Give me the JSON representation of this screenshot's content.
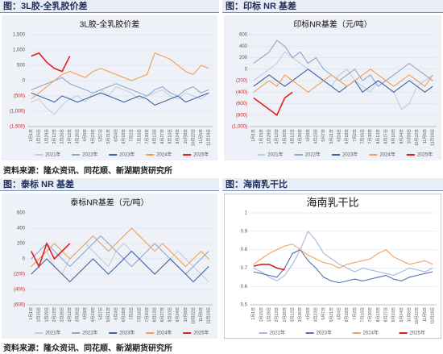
{
  "captions": [
    "图：3L胶-全乳胶价差",
    "图：印标 NR 基差",
    "图：泰标 NR 基差",
    "图：海南乳干比"
  ],
  "sources": [
    "资料来源：隆众资讯、同花顺、新湖期货研究所",
    "资料来源：隆众资讯、同花顺、新湖期货研究所"
  ],
  "chart_data": [
    {
      "type": "line",
      "title": "3L胶-全乳胶价差",
      "categories": [
        "1月1日",
        "1月15日",
        "1月29日",
        "2月12日",
        "2月26日",
        "3月12日",
        "3月26日",
        "4月9日",
        "4月23日",
        "5月7日",
        "5月21日",
        "6月4日",
        "6月18日",
        "7月2日",
        "7月16日",
        "7月30日",
        "8月13日",
        "8月27日",
        "9月10日",
        "9月24日",
        "10月8日",
        "10月22日",
        "11月5日",
        "11月19日"
      ],
      "ylim": [
        -1500,
        1500
      ],
      "yticks": [
        {
          "value": 1500,
          "label": "1,500"
        },
        {
          "value": 1000,
          "label": "1,000"
        },
        500,
        0,
        {
          "value": -500,
          "label": "(500)"
        },
        {
          "value": -1000,
          "label": "(1,000)"
        },
        {
          "value": -1500,
          "label": "(1,500)"
        }
      ],
      "series": [
        {
          "name": "2021年",
          "color": "#c3cde0",
          "values": [
            -700,
            -600,
            -900,
            -1100,
            -800,
            -600,
            -500,
            -700,
            -400,
            -300,
            -500,
            -200,
            -300,
            -400,
            -600,
            -500,
            -400,
            -300,
            -500,
            -600,
            -400,
            -500,
            -600,
            -400
          ]
        },
        {
          "name": "2022年",
          "color": "#8ea6cf",
          "values": [
            -300,
            -200,
            -100,
            0,
            100,
            -100,
            -200,
            -300,
            -400,
            -300,
            -200,
            -100,
            -200,
            -300,
            -400,
            -500,
            -300,
            -200,
            -400,
            -500,
            -300,
            -200,
            -400,
            -300
          ]
        },
        {
          "name": "2023年",
          "color": "#3c64a8",
          "values": [
            -400,
            -500,
            -600,
            -700,
            -500,
            -600,
            -700,
            -600,
            -500,
            -400,
            -500,
            -600,
            -700,
            -600,
            -500,
            -600,
            -800,
            -700,
            -600,
            -500,
            -700,
            -600,
            -500,
            -400
          ]
        },
        {
          "name": "2024年",
          "color": "#f0a050",
          "values": [
            -600,
            -400,
            -200,
            0,
            200,
            300,
            200,
            100,
            300,
            400,
            300,
            200,
            100,
            0,
            100,
            200,
            900,
            800,
            700,
            500,
            300,
            200,
            500,
            400
          ]
        },
        {
          "name": "2025年",
          "color": "#e02020",
          "values": [
            800,
            900,
            600,
            400,
            300,
            800,
            null,
            null,
            null,
            null,
            null,
            null,
            null,
            null,
            null,
            null,
            null,
            null,
            null,
            null,
            null,
            null,
            null,
            null
          ]
        }
      ]
    },
    {
      "type": "line",
      "title": "印标NR基差（元/吨）",
      "categories": [
        "1月1日",
        "1月15日",
        "1月29日",
        "2月12日",
        "2月26日",
        "3月12日",
        "3月26日",
        "4月9日",
        "4月23日",
        "5月7日",
        "5月21日",
        "6月4日",
        "6月18日",
        "7月2日",
        "7月16日",
        "7月30日",
        "8月13日",
        "8月27日",
        "9月10日",
        "9月24日",
        "10月8日",
        "10月22日",
        "11月5日",
        "11月19日"
      ],
      "ylim": [
        -1000,
        600
      ],
      "yticks": [
        600,
        400,
        200,
        0,
        {
          "value": -200,
          "label": "(200)"
        },
        {
          "value": -400,
          "label": "(400)"
        },
        {
          "value": -600,
          "label": "(600)"
        },
        {
          "value": -800,
          "label": "(800)"
        },
        {
          "value": -1000,
          "label": "(1,000)"
        }
      ],
      "series": [
        {
          "name": "2021年",
          "color": "#c3cde0",
          "values": [
            -200,
            -100,
            0,
            100,
            300,
            200,
            100,
            0,
            -100,
            -200,
            -300,
            -100,
            0,
            -200,
            -300,
            -400,
            -200,
            -300,
            -400,
            -700,
            -600,
            -300,
            -200,
            -100
          ]
        },
        {
          "name": "2022年",
          "color": "#8ea6cf",
          "values": [
            100,
            200,
            300,
            500,
            400,
            200,
            300,
            100,
            200,
            0,
            -100,
            -200,
            -100,
            0,
            -200,
            -100,
            -300,
            -200,
            -100,
            0,
            100,
            0,
            -100,
            -200
          ]
        },
        {
          "name": "2023年",
          "color": "#3c64a8",
          "values": [
            -300,
            -200,
            -100,
            -200,
            -300,
            -200,
            -100,
            0,
            -100,
            -200,
            -300,
            -400,
            -300,
            -200,
            -400,
            -300,
            -200,
            -300,
            -400,
            -300,
            -200,
            -300,
            -400,
            -300
          ]
        },
        {
          "name": "2024年",
          "color": "#f0a050",
          "values": [
            -400,
            -300,
            -200,
            -300,
            -100,
            -200,
            -300,
            -400,
            -300,
            -200,
            -100,
            -200,
            -300,
            -200,
            -100,
            0,
            -100,
            -200,
            -300,
            -200,
            -100,
            -200,
            -300,
            -100
          ]
        },
        {
          "name": "2025年",
          "color": "#e02020",
          "values": [
            -500,
            -600,
            -700,
            -800,
            -500,
            -400,
            null,
            null,
            null,
            null,
            null,
            null,
            null,
            null,
            null,
            null,
            null,
            null,
            null,
            null,
            null,
            null,
            null,
            null
          ]
        }
      ]
    },
    {
      "type": "line",
      "title": "泰标NR基差（元/吨）",
      "categories": [
        "1月1日",
        "1月15日",
        "1月29日",
        "2月12日",
        "2月26日",
        "3月12日",
        "3月26日",
        "4月9日",
        "4月23日",
        "5月7日",
        "5月21日",
        "6月4日",
        "6月18日",
        "7月2日",
        "7月16日",
        "7月30日",
        "8月13日",
        "8月27日",
        "9月10日",
        "9月24日",
        "10月8日",
        "10月22日",
        "11月5日",
        "11月19日"
      ],
      "ylim": [
        -600,
        600
      ],
      "yticks": [
        600,
        400,
        200,
        0,
        {
          "value": -200,
          "label": "(200)"
        },
        {
          "value": -400,
          "label": "(400)"
        },
        {
          "value": -600,
          "label": "(600)"
        }
      ],
      "series": [
        {
          "name": "2021年",
          "color": "#c3cde0",
          "values": [
            -100,
            0,
            100,
            -100,
            -200,
            0,
            100,
            200,
            100,
            0,
            -100,
            100,
            200,
            100,
            0,
            -100,
            -200,
            -100,
            0,
            100,
            0,
            -100,
            -200,
            -300
          ]
        },
        {
          "name": "2022年",
          "color": "#8ea6cf",
          "values": [
            0,
            100,
            200,
            100,
            0,
            -100,
            0,
            100,
            200,
            300,
            200,
            100,
            0,
            -100,
            0,
            100,
            200,
            100,
            0,
            -100,
            -200,
            -100,
            0,
            100
          ]
        },
        {
          "name": "2023年",
          "color": "#3c64a8",
          "values": [
            -200,
            -100,
            0,
            -100,
            -200,
            -300,
            -200,
            -100,
            0,
            -100,
            -200,
            -100,
            0,
            100,
            0,
            -100,
            -200,
            -100,
            0,
            -100,
            -200,
            -300,
            -200,
            -100
          ]
        },
        {
          "name": "2024年",
          "color": "#f0a050",
          "values": [
            -100,
            0,
            100,
            200,
            100,
            0,
            100,
            200,
            300,
            200,
            100,
            200,
            300,
            400,
            300,
            200,
            100,
            200,
            100,
            0,
            -100,
            0,
            100,
            0
          ]
        },
        {
          "name": "2025年",
          "color": "#e02020",
          "values": [
            100,
            -100,
            200,
            0,
            100,
            200,
            null,
            null,
            null,
            null,
            null,
            null,
            null,
            null,
            null,
            null,
            null,
            null,
            null,
            null,
            null,
            null,
            null,
            null
          ]
        }
      ]
    },
    {
      "type": "line",
      "title": "海南乳干比",
      "categories": [
        "1月1日",
        "1月15日",
        "1月29日",
        "2月12日",
        "2月26日",
        "3月12日",
        "3月26日",
        "4月9日",
        "4月23日",
        "5月7日",
        "5月21日",
        "6月4日",
        "6月18日",
        "7月2日",
        "7月16日",
        "7月30日",
        "8月13日",
        "8月27日",
        "9月10日",
        "9月24日",
        "10月8日",
        "10月22日",
        "11月5日",
        "11月19日"
      ],
      "ylim": [
        0.5,
        1
      ],
      "yticks": [
        1,
        0.9,
        0.8,
        0.7,
        0.6,
        0.5
      ],
      "series": [
        {
          "name": "2022年",
          "color": "#a9b8d8",
          "values": [
            0.7,
            0.68,
            0.65,
            0.63,
            0.66,
            0.72,
            0.8,
            0.9,
            0.85,
            0.78,
            0.75,
            0.72,
            0.7,
            0.68,
            0.7,
            0.69,
            0.68,
            0.67,
            0.66,
            0.68,
            0.7,
            0.69,
            0.68,
            0.7
          ]
        },
        {
          "name": "2023年",
          "color": "#5070b0",
          "values": [
            0.68,
            0.67,
            0.66,
            0.65,
            0.7,
            0.78,
            0.8,
            0.74,
            0.7,
            0.65,
            0.63,
            0.62,
            0.63,
            0.64,
            0.63,
            0.64,
            0.65,
            0.66,
            0.64,
            0.63,
            0.65,
            0.66,
            0.67,
            0.68
          ]
        },
        {
          "name": "2024年",
          "color": "#f0a060",
          "values": [
            0.72,
            0.75,
            0.78,
            0.8,
            0.82,
            0.83,
            0.8,
            0.77,
            0.75,
            0.73,
            0.72,
            0.7,
            0.72,
            0.73,
            0.74,
            0.75,
            0.78,
            0.8,
            0.76,
            0.74,
            0.72,
            0.73,
            0.74,
            0.72
          ]
        },
        {
          "name": "2025年",
          "color": "#d02020",
          "values": [
            0.71,
            0.72,
            0.72,
            0.7,
            0.69,
            null,
            null,
            null,
            null,
            null,
            null,
            null,
            null,
            null,
            null,
            null,
            null,
            null,
            null,
            null,
            null,
            null,
            null,
            null
          ]
        }
      ]
    }
  ]
}
